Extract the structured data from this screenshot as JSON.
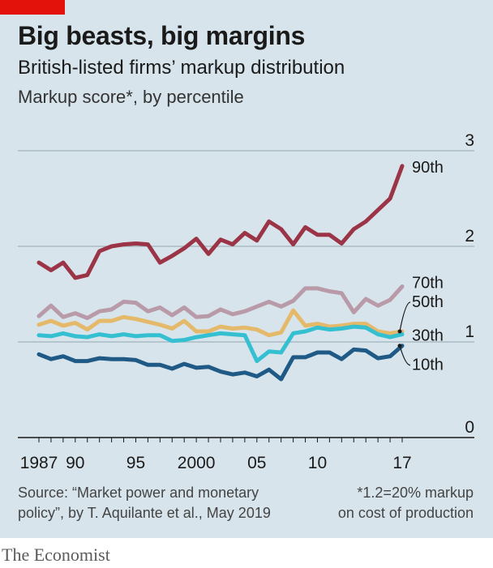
{
  "header": {
    "title": "Big beasts, big margins",
    "subtitle": "British-listed firms’ markup distribution",
    "unit": "Markup score*, by percentile"
  },
  "footer": {
    "source": "Source: “Market power and monetary\npolicy”, by T. Aquilante et al., May 2019",
    "footnote": "*1.2=20% markup\non cost of production",
    "brand": "The Economist"
  },
  "colors": {
    "background": "#d7e4eb",
    "p90": "#9b3446",
    "p70": "#b89aa8",
    "p50": "#e5b96a",
    "p30": "#35c0d2",
    "p10": "#1f5a86",
    "grid": "#9fb2bd",
    "accent": "#e3120b"
  },
  "chart_data": {
    "type": "line",
    "x": [
      1987,
      1988,
      1989,
      1990,
      1991,
      1992,
      1993,
      1994,
      1995,
      1996,
      1997,
      1998,
      1999,
      2000,
      2001,
      2002,
      2003,
      2004,
      2005,
      2006,
      2007,
      2008,
      2009,
      2010,
      2011,
      2012,
      2013,
      2014,
      2015,
      2016,
      2017
    ],
    "ylim": [
      0,
      3
    ],
    "y_ticks": [
      0,
      1,
      2,
      3
    ],
    "x_tick_labels": [
      {
        "x": 1987,
        "label": "1987"
      },
      {
        "x": 1990,
        "label": "90"
      },
      {
        "x": 1995,
        "label": "95"
      },
      {
        "x": 2000,
        "label": "2000"
      },
      {
        "x": 2005,
        "label": "05"
      },
      {
        "x": 2010,
        "label": "10"
      },
      {
        "x": 2017,
        "label": "17"
      }
    ],
    "grid": true,
    "series": [
      {
        "name": "90th",
        "color_key": "p90",
        "values": [
          1.83,
          1.75,
          1.83,
          1.67,
          1.7,
          1.95,
          2.0,
          2.02,
          2.03,
          2.02,
          1.83,
          1.9,
          1.98,
          2.08,
          1.92,
          2.07,
          2.02,
          2.14,
          2.06,
          2.26,
          2.18,
          2.02,
          2.2,
          2.12,
          2.12,
          2.03,
          2.18,
          2.26,
          2.38,
          2.5,
          2.84
        ]
      },
      {
        "name": "70th",
        "color_key": "p70",
        "values": [
          1.27,
          1.38,
          1.26,
          1.3,
          1.25,
          1.32,
          1.34,
          1.42,
          1.41,
          1.32,
          1.36,
          1.28,
          1.36,
          1.26,
          1.27,
          1.34,
          1.29,
          1.32,
          1.37,
          1.42,
          1.37,
          1.43,
          1.56,
          1.56,
          1.53,
          1.51,
          1.31,
          1.45,
          1.38,
          1.44,
          1.58
        ]
      },
      {
        "name": "50th",
        "color_key": "p50",
        "values": [
          1.18,
          1.22,
          1.17,
          1.2,
          1.13,
          1.22,
          1.22,
          1.26,
          1.24,
          1.21,
          1.18,
          1.14,
          1.22,
          1.11,
          1.11,
          1.16,
          1.14,
          1.15,
          1.13,
          1.07,
          1.1,
          1.33,
          1.17,
          1.19,
          1.16,
          1.17,
          1.19,
          1.19,
          1.11,
          1.09,
          1.11
        ]
      },
      {
        "name": "30th",
        "color_key": "p30",
        "values": [
          1.07,
          1.06,
          1.09,
          1.06,
          1.05,
          1.08,
          1.06,
          1.08,
          1.06,
          1.07,
          1.07,
          1.01,
          1.02,
          1.05,
          1.07,
          1.09,
          1.08,
          1.07,
          0.8,
          0.9,
          0.89,
          1.09,
          1.11,
          1.15,
          1.13,
          1.14,
          1.16,
          1.15,
          1.08,
          1.05,
          1.08
        ]
      },
      {
        "name": "10th",
        "color_key": "p10",
        "values": [
          0.87,
          0.82,
          0.85,
          0.8,
          0.8,
          0.83,
          0.82,
          0.82,
          0.81,
          0.76,
          0.76,
          0.72,
          0.77,
          0.73,
          0.74,
          0.69,
          0.66,
          0.68,
          0.64,
          0.71,
          0.61,
          0.84,
          0.84,
          0.89,
          0.89,
          0.82,
          0.92,
          0.91,
          0.83,
          0.85,
          0.96
        ]
      }
    ]
  }
}
